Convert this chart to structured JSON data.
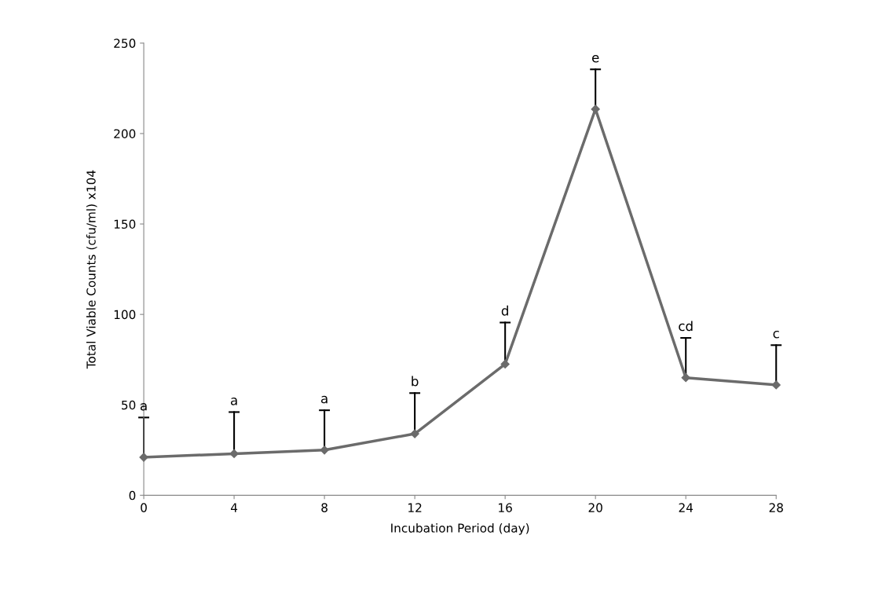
{
  "chart_data": {
    "type": "line",
    "xlabel": "Incubation Period (day)",
    "ylabel": "Total Viable Counts (cfu/ml) x104",
    "x": [
      0,
      4,
      8,
      12,
      16,
      20,
      24,
      28
    ],
    "series": [
      {
        "color": "#6b6b6b",
        "values": [
          21,
          23,
          25,
          34,
          72.5,
          213.5,
          65,
          61
        ],
        "errors": [
          [
            21,
            43
          ],
          [
            23,
            46
          ],
          [
            25,
            47
          ],
          [
            34,
            56.5
          ],
          [
            72.5,
            95.5
          ],
          [
            213.5,
            235.5
          ],
          [
            65,
            87
          ],
          [
            61,
            83
          ]
        ]
      }
    ],
    "marker": "diamond",
    "line_style": "solid",
    "grid": false,
    "legend": false,
    "xlim": [
      0,
      28
    ],
    "xticks": [
      0,
      4,
      8,
      12,
      16,
      20,
      24,
      28
    ],
    "ylim": [
      0,
      250
    ],
    "yticks": [
      0,
      50,
      100,
      150,
      200,
      250
    ],
    "annotations": [
      "a",
      "a",
      "a",
      "b",
      "d",
      "e",
      "cd",
      "c"
    ]
  }
}
